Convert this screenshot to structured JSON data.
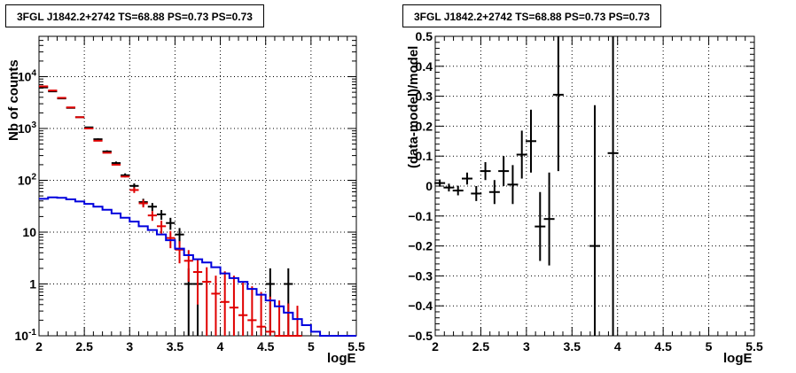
{
  "chart_data": [
    {
      "type": "histogram-points",
      "title": "3FGL J1842.2+2742 TS=68.88 PS=0.73 PS=0.73",
      "xlabel": "logE",
      "ylabel": "Nb of counts",
      "xlim": [
        2,
        5.5
      ],
      "ylim": [
        0.1,
        60000
      ],
      "yscale": "log",
      "grid": true,
      "xticks": [
        "2",
        "2.5",
        "3",
        "3.5",
        "4",
        "4.5",
        "5",
        "5.5"
      ],
      "yticks": [
        "10^-1",
        "1",
        "10",
        "10^2",
        "10^3",
        "10^4"
      ],
      "bin_width": 0.1,
      "series": [
        {
          "color": "#000000",
          "style": "points",
          "points": [
            {
              "x": 2.05,
              "y": 6200,
              "yerr": [
                79,
                79
              ]
            },
            {
              "x": 2.15,
              "y": 5200,
              "yerr": [
                72,
                72
              ]
            },
            {
              "x": 2.25,
              "y": 3800,
              "yerr": [
                62,
                62
              ]
            },
            {
              "x": 2.35,
              "y": 2500,
              "yerr": [
                50,
                50
              ]
            },
            {
              "x": 2.45,
              "y": 1650,
              "yerr": [
                41,
                41
              ]
            },
            {
              "x": 2.55,
              "y": 1050,
              "yerr": [
                32,
                32
              ]
            },
            {
              "x": 2.65,
              "y": 620,
              "yerr": [
                25,
                25
              ]
            },
            {
              "x": 2.75,
              "y": 360,
              "yerr": [
                19,
                19
              ]
            },
            {
              "x": 2.85,
              "y": 215,
              "yerr": [
                15,
                15
              ]
            },
            {
              "x": 2.95,
              "y": 125,
              "yerr": [
                11,
                11
              ]
            },
            {
              "x": 3.05,
              "y": 78,
              "yerr": [
                9,
                9
              ]
            },
            {
              "x": 3.15,
              "y": 38,
              "yerr": [
                6,
                6
              ]
            },
            {
              "x": 3.25,
              "y": 31,
              "yerr": [
                5.5,
                5.5
              ]
            },
            {
              "x": 3.35,
              "y": 22,
              "yerr": [
                4.7,
                4.7
              ]
            },
            {
              "x": 3.45,
              "y": 15,
              "yerr": [
                3.9,
                3.9
              ]
            },
            {
              "x": 3.55,
              "y": 9,
              "yerr": [
                3,
                3
              ]
            },
            {
              "x": 3.65,
              "y": 1,
              "yerr": [
                0.9,
                1
              ]
            },
            {
              "x": 3.75,
              "y": 1,
              "yerr": [
                0.9,
                1
              ]
            },
            {
              "x": 4.55,
              "y": 1,
              "yerr": [
                0.9,
                1
              ]
            },
            {
              "x": 4.75,
              "y": 1,
              "yerr": [
                0.9,
                1
              ]
            }
          ]
        },
        {
          "color": "#e00000",
          "style": "points",
          "points": [
            {
              "x": 2.05,
              "y": 6500,
              "yerr": [
                0,
                0
              ]
            },
            {
              "x": 2.15,
              "y": 5400,
              "yerr": [
                0,
                0
              ]
            },
            {
              "x": 2.25,
              "y": 3900,
              "yerr": [
                0,
                0
              ]
            },
            {
              "x": 2.35,
              "y": 2550,
              "yerr": [
                0,
                0
              ]
            },
            {
              "x": 2.45,
              "y": 1650,
              "yerr": [
                0,
                0
              ]
            },
            {
              "x": 2.55,
              "y": 1000,
              "yerr": [
                0,
                0
              ]
            },
            {
              "x": 2.65,
              "y": 580,
              "yerr": [
                0,
                0
              ]
            },
            {
              "x": 2.75,
              "y": 340,
              "yerr": [
                0,
                0
              ]
            },
            {
              "x": 2.85,
              "y": 200,
              "yerr": [
                0,
                0
              ]
            },
            {
              "x": 2.95,
              "y": 118,
              "yerr": [
                0,
                0
              ]
            },
            {
              "x": 3.05,
              "y": 65,
              "yerr": [
                8,
                8
              ]
            },
            {
              "x": 3.15,
              "y": 36,
              "yerr": [
                6,
                6
              ]
            },
            {
              "x": 3.25,
              "y": 21,
              "yerr": [
                4.5,
                4.5
              ]
            },
            {
              "x": 3.35,
              "y": 13,
              "yerr": [
                3.6,
                3.6
              ]
            },
            {
              "x": 3.45,
              "y": 7.7,
              "yerr": [
                2.8,
                2.8
              ]
            },
            {
              "x": 3.55,
              "y": 4.6,
              "yerr": [
                2.1,
                2.1
              ]
            },
            {
              "x": 3.65,
              "y": 2.8,
              "yerr": [
                1.7,
                1.7
              ]
            },
            {
              "x": 3.75,
              "y": 1.7,
              "yerr": [
                1.3,
                1.3
              ]
            },
            {
              "x": 3.85,
              "y": 1.1,
              "yerr": [
                1.0,
                1.0
              ]
            },
            {
              "x": 3.95,
              "y": 0.65,
              "yerr": [
                0.55,
                0.8
              ]
            },
            {
              "x": 4.05,
              "y": 0.45,
              "yerr": [
                0.35,
                1.3
              ]
            },
            {
              "x": 4.15,
              "y": 0.35,
              "yerr": [
                0.25,
                1.1
              ]
            },
            {
              "x": 4.25,
              "y": 0.25,
              "yerr": [
                0.15,
                0.85
              ]
            },
            {
              "x": 4.35,
              "y": 0.2,
              "yerr": [
                0.1,
                0.7
              ]
            },
            {
              "x": 4.45,
              "y": 0.15,
              "yerr": [
                0.05,
                0.55
              ]
            },
            {
              "x": 4.55,
              "y": 0.12,
              "yerr": [
                0.02,
                0.45
              ]
            },
            {
              "x": 4.65,
              "y": 0.1,
              "yerr": [
                0,
                0.38
              ]
            },
            {
              "x": 4.75,
              "y": 0.1,
              "yerr": [
                0,
                0.32
              ]
            },
            {
              "x": 4.85,
              "y": 0.1,
              "yerr": [
                0,
                0.28
              ]
            }
          ]
        },
        {
          "color": "#0000dd",
          "style": "step",
          "x_edges": [
            2.0,
            2.1,
            2.2,
            2.3,
            2.4,
            2.5,
            2.6,
            2.7,
            2.8,
            2.9,
            3.0,
            3.1,
            3.2,
            3.3,
            3.4,
            3.5,
            3.6,
            3.7,
            3.8,
            3.9,
            4.0,
            4.1,
            4.2,
            4.3,
            4.4,
            4.5,
            4.6,
            4.7,
            4.8,
            4.9,
            5.0,
            5.1,
            5.2,
            5.3,
            5.4,
            5.5
          ],
          "values": [
            44,
            47,
            46,
            43,
            39,
            35,
            31,
            27,
            23,
            19,
            16,
            13,
            11,
            9,
            7,
            4.8,
            3.6,
            3.0,
            2.6,
            2.1,
            1.6,
            1.3,
            1.1,
            0.8,
            0.62,
            0.48,
            0.37,
            0.28,
            0.21,
            0.16,
            0.12,
            0.1,
            0.1,
            0.1,
            0.1
          ]
        }
      ]
    },
    {
      "type": "scatter-errorbars",
      "title": "3FGL J1842.2+2742 TS=68.88 PS=0.73 PS=0.73",
      "xlabel": "logE",
      "ylabel": "(data-model)/model",
      "xlim": [
        2,
        5.5
      ],
      "ylim": [
        -0.5,
        0.5
      ],
      "grid": true,
      "xticks": [
        "2",
        "2.5",
        "3",
        "3.5",
        "4",
        "4.5",
        "5",
        "5.5"
      ],
      "yticks": [
        "−0.5",
        "−0.4",
        "−0.3",
        "−0.2",
        "−0.1",
        "0",
        "0.1",
        "0.2",
        "0.3",
        "0.4",
        "0.5"
      ],
      "series": [
        {
          "color": "#000000",
          "points": [
            {
              "x": 2.05,
              "y": 0.01,
              "yerr": 0.012
            },
            {
              "x": 2.15,
              "y": -0.005,
              "yerr": 0.013
            },
            {
              "x": 2.25,
              "y": -0.015,
              "yerr": 0.016
            },
            {
              "x": 2.35,
              "y": 0.025,
              "yerr": 0.02
            },
            {
              "x": 2.45,
              "y": -0.025,
              "yerr": 0.025
            },
            {
              "x": 2.55,
              "y": 0.05,
              "yerr": 0.03
            },
            {
              "x": 2.65,
              "y": -0.02,
              "yerr": 0.04
            },
            {
              "x": 2.75,
              "y": 0.05,
              "yerr": 0.05
            },
            {
              "x": 2.85,
              "y": 0.005,
              "yerr": 0.065
            },
            {
              "x": 2.95,
              "y": 0.105,
              "yerr": 0.08
            },
            {
              "x": 3.05,
              "y": 0.15,
              "yerr": 0.105
            },
            {
              "x": 3.15,
              "y": -0.135,
              "yerr": 0.115
            },
            {
              "x": 3.25,
              "y": -0.11,
              "yerr": 0.155
            },
            {
              "x": 3.35,
              "y": 0.305,
              "yerr": 0.255
            },
            {
              "x": 3.75,
              "y": -0.2,
              "yerr": 0.47
            },
            {
              "x": 3.95,
              "y": 0.11,
              "yerr": 0.8
            }
          ]
        }
      ]
    }
  ]
}
